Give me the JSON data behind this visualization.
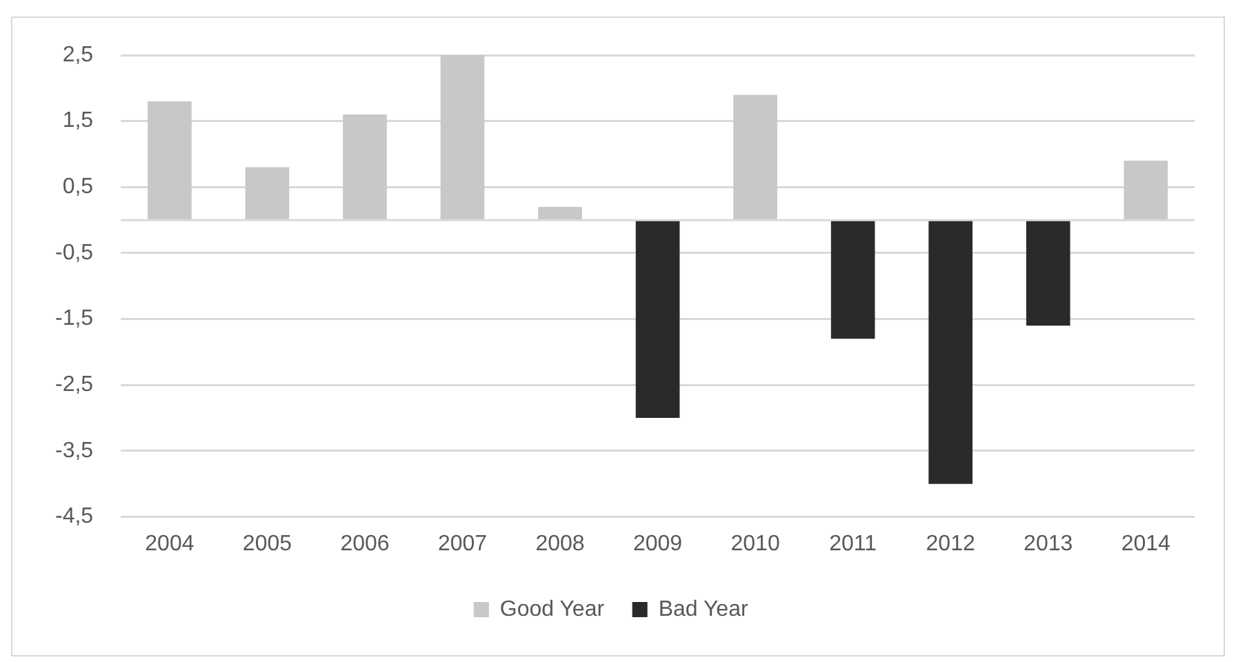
{
  "chart_data": {
    "type": "bar",
    "stacked": true,
    "categories": [
      "2004",
      "2005",
      "2006",
      "2007",
      "2008",
      "2009",
      "2010",
      "2011",
      "2012",
      "2013",
      "2014"
    ],
    "series": [
      {
        "name": "Good Year",
        "color": "#c8c8c8",
        "values": [
          1.8,
          0.8,
          1.6,
          2.5,
          0.2,
          null,
          1.9,
          null,
          null,
          null,
          0.9
        ]
      },
      {
        "name": "Bad Year",
        "color": "#2a2a2a",
        "values": [
          null,
          null,
          null,
          null,
          null,
          -3.0,
          null,
          -1.8,
          -4.0,
          -1.6,
          null
        ]
      }
    ],
    "ylim": [
      -4.5,
      2.5
    ],
    "yticks": [
      {
        "value": -4.5,
        "label": "-4,5"
      },
      {
        "value": -3.5,
        "label": "-3,5"
      },
      {
        "value": -2.5,
        "label": "-2,5"
      },
      {
        "value": -1.5,
        "label": "-1,5"
      },
      {
        "value": -0.5,
        "label": "-0,5"
      },
      {
        "value": 0.5,
        "label": "0,5"
      },
      {
        "value": 1.5,
        "label": "1,5"
      },
      {
        "value": 2.5,
        "label": "2,5"
      }
    ],
    "grid": "y",
    "legend": "bottom"
  }
}
